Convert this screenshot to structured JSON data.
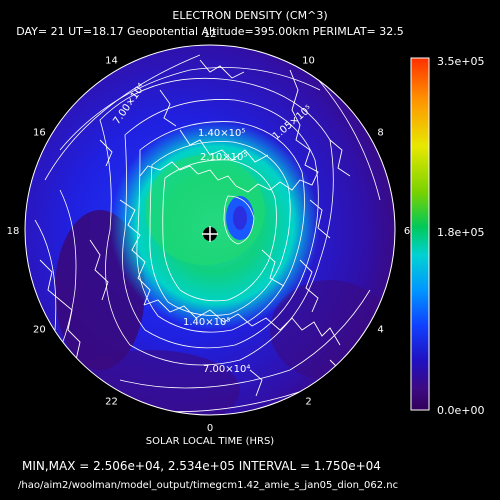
{
  "chart_data": {
    "type": "heatmap",
    "title": "ELECTRON DENSITY (CM^3)",
    "subtitle": "DAY= 21 UT=18.17 Geopotential Altitude=395.00km PERIMLAT= 32.5",
    "xlabel": "SOLAR LOCAL TIME (HRS)",
    "local_time_labels": [
      "12",
      "10",
      "8",
      "6",
      "4",
      "2",
      "0",
      "22",
      "20",
      "18",
      "16",
      "14"
    ],
    "colorbar": {
      "min": 0,
      "max": 350000,
      "tick_labels": [
        "3.5e+05",
        "1.8e+05",
        "0.0e+00"
      ],
      "colors": [
        "#ff3000",
        "#ff9400",
        "#e8e800",
        "#7ad200",
        "#00c85a",
        "#00d2d2",
        "#0096ff",
        "#1040ff",
        "#2010c0",
        "#3c0a82",
        "#32005a"
      ]
    },
    "contour_labels": [
      "7.00×10⁴",
      "1.40×10⁵",
      "2.10×10⁵",
      "1.05×10⁵",
      "1.40×10⁵",
      "7.00×10⁴"
    ],
    "min_value": 25060,
    "max_value": 253400,
    "interval": 17500,
    "stats_text": "MIN,MAX =  2.506e+04, 2.534e+05 INTERVAL =  1.750e+04",
    "file_path": "/hao/aim2/woolman/model_output/timegcm1.42_amie_s_jan05_dion_062.nc"
  }
}
